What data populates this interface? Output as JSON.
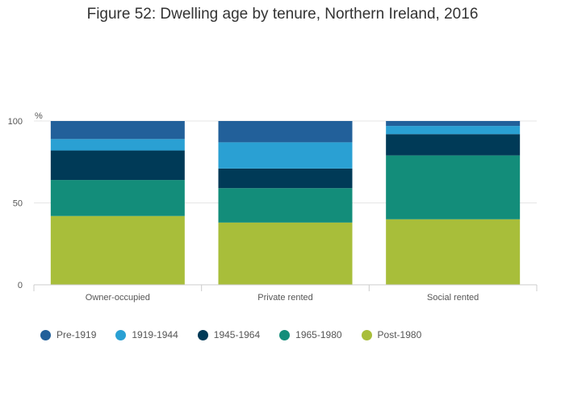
{
  "title": "Figure 52: Dwelling age by tenure, Northern Ireland, 2016",
  "chart_data": {
    "type": "bar",
    "stacked": true,
    "title": "Figure 52: Dwelling age by tenure, Northern Ireland, 2016",
    "ylabel": "%",
    "xlabel": "",
    "ylim": [
      0,
      100
    ],
    "yticks": [
      0,
      50,
      100
    ],
    "categories": [
      "Owner-occupied",
      "Private rented",
      "Social rented"
    ],
    "series": [
      {
        "name": "Post-1980",
        "color": "#a8be3a",
        "values": [
          42,
          38,
          40
        ]
      },
      {
        "name": "1965-1980",
        "color": "#138d7a",
        "values": [
          22,
          21,
          39
        ]
      },
      {
        "name": "1945-1964",
        "color": "#003a57",
        "values": [
          18,
          12,
          13
        ]
      },
      {
        "name": "1919-1944",
        "color": "#2aa0d3",
        "values": [
          7,
          16,
          5
        ]
      },
      {
        "name": "Pre-1919",
        "color": "#22609a",
        "values": [
          11,
          13,
          3
        ]
      }
    ],
    "legend_order": [
      "Pre-1919",
      "1919-1944",
      "1945-1964",
      "1965-1980",
      "Post-1980"
    ],
    "legend_position": "bottom-left"
  }
}
